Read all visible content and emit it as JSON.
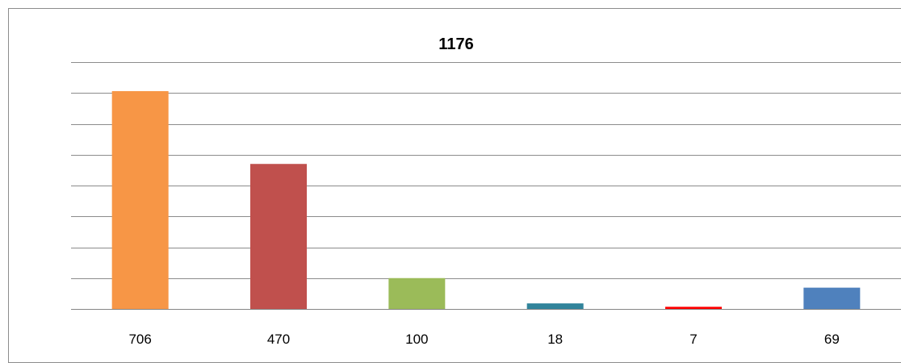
{
  "chart_data": {
    "type": "bar",
    "title": "1176",
    "categories": [
      "706",
      "470",
      "100",
      "18",
      "7",
      "69"
    ],
    "values": [
      706,
      470,
      100,
      18,
      7,
      69
    ],
    "colors": [
      "#F79646",
      "#C0504D",
      "#9BBB59",
      "#31849B",
      "#FF0000",
      "#4F81BD"
    ],
    "ylim": [
      0,
      800
    ],
    "grid": true,
    "legend": "none",
    "xlabel": "",
    "ylabel": ""
  }
}
